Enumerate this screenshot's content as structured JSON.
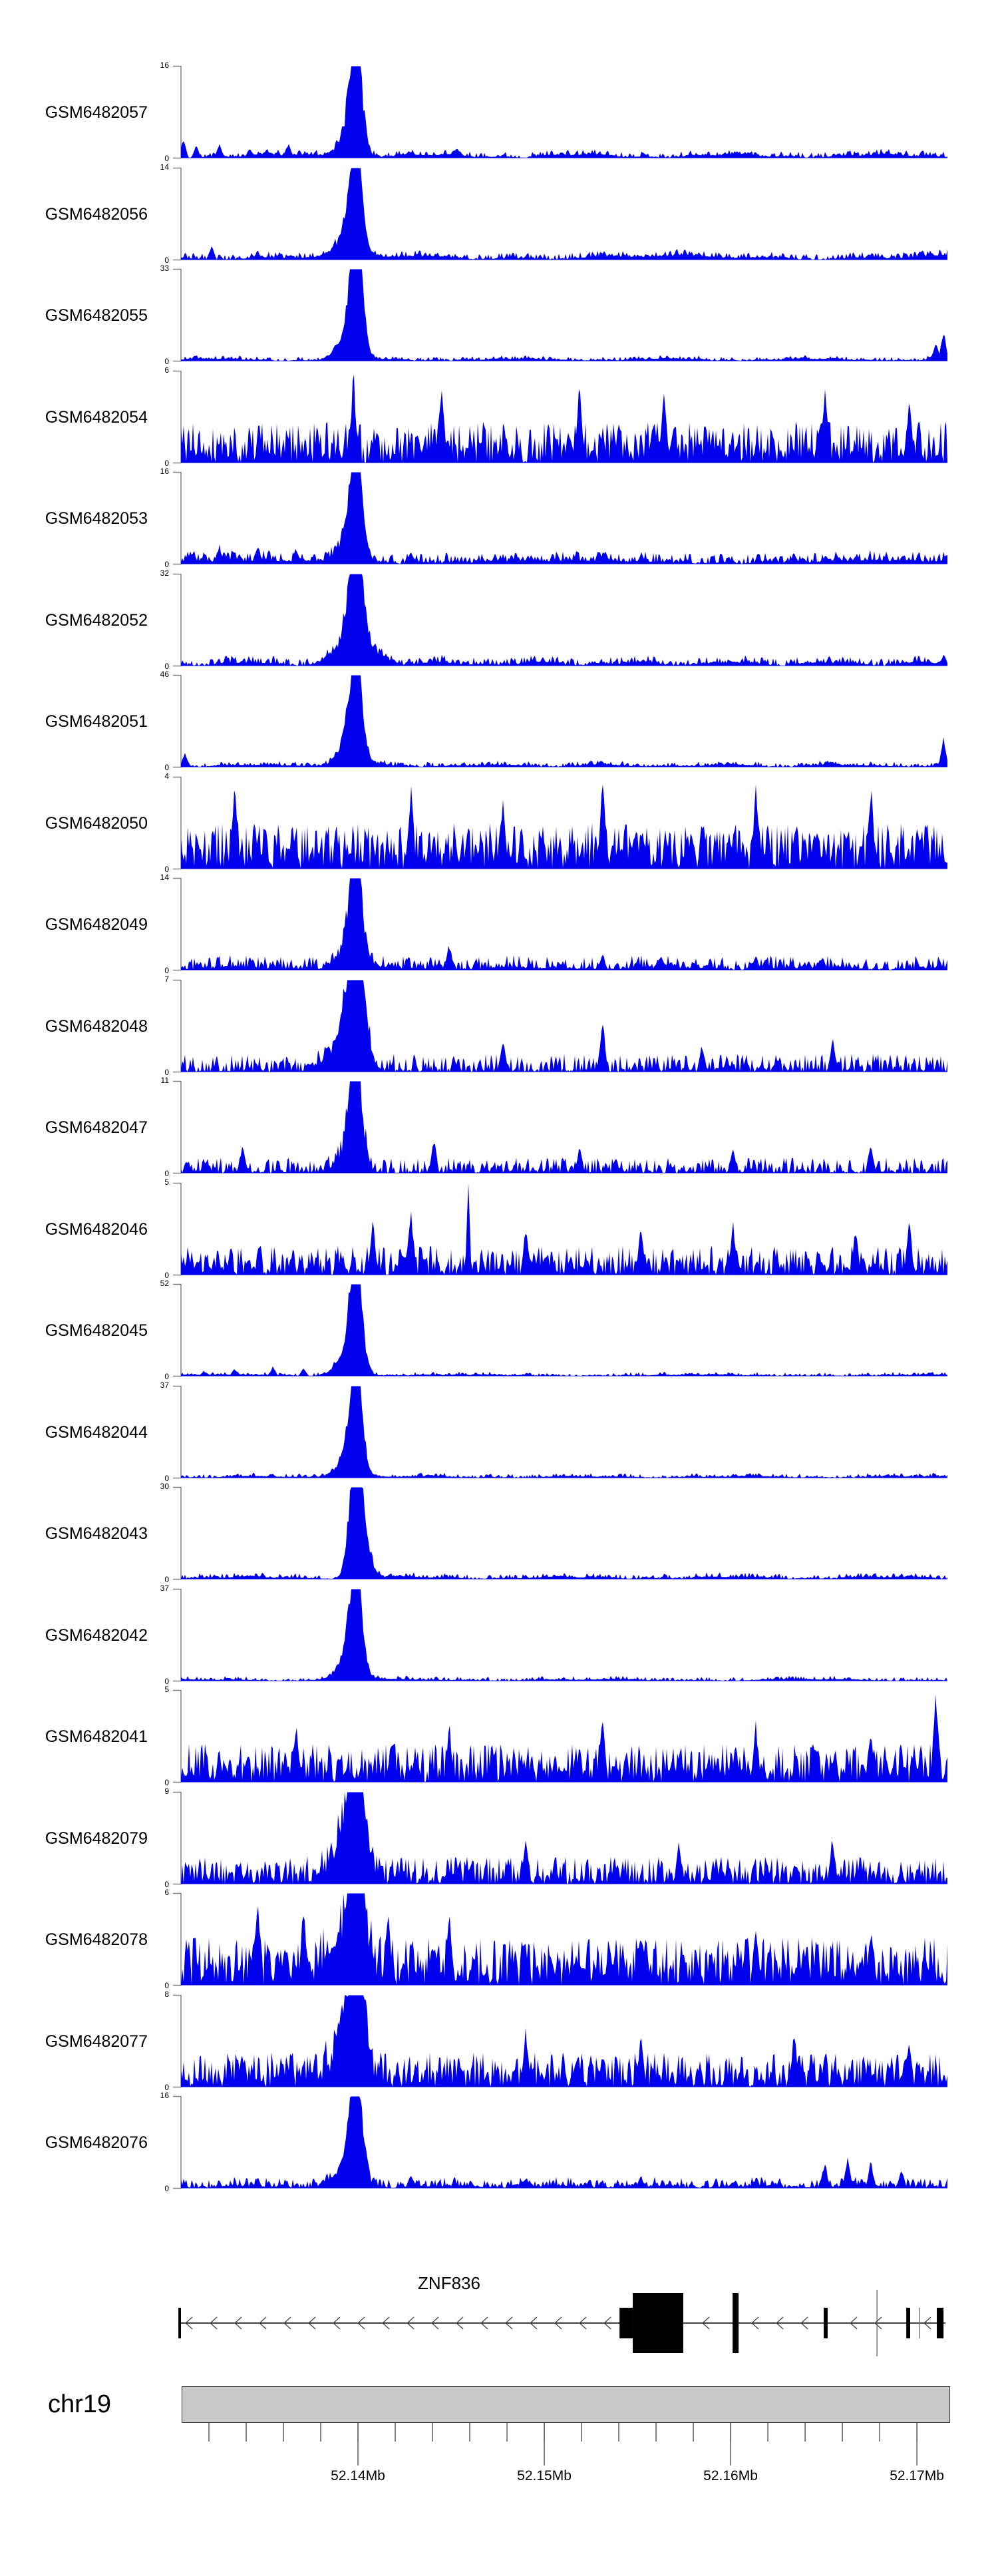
{
  "figure": {
    "background": "#ffffff",
    "signal_color": "#0000ee",
    "axis_line_color": "#808080",
    "tick_color": "#333333",
    "gene_color": "#000000",
    "chrom_bar_fill": "#c9c9c9"
  },
  "chart_data": {
    "type": "area",
    "title": "",
    "description": "Genome browser coverage tracks (21 GEO samples) over the ZNF836 locus on chr19; sharp binding peak near 52.140 Mb in ChIP samples, dense noise in input-like samples.",
    "y_axis_zero_label": "0",
    "region": {
      "chromosome": "chr19",
      "start_mb": 52.1305,
      "end_mb": 52.17164,
      "major_ticks": [
        {
          "mb": 52.14,
          "label": "52.14Mb"
        },
        {
          "mb": 52.15,
          "label": "52.15Mb"
        },
        {
          "mb": 52.16,
          "label": "52.16Mb"
        },
        {
          "mb": 52.17,
          "label": "52.17Mb"
        }
      ],
      "minor_tick_start_mb": 52.132,
      "minor_tick_interval_mb": 0.002,
      "minor_tick_count": 20
    },
    "gene": {
      "name": "ZNF836",
      "strand": "-",
      "start_mb": 52.13036,
      "end_mb": 52.17154,
      "exons": [
        {
          "start_mb": 52.13036,
          "end_mb": 52.1305,
          "height": "short"
        },
        {
          "start_mb": 52.15404,
          "end_mb": 52.15475,
          "height": "short"
        },
        {
          "start_mb": 52.15475,
          "end_mb": 52.15746,
          "height": "tall"
        },
        {
          "start_mb": 52.16011,
          "end_mb": 52.16043,
          "height": "tall"
        },
        {
          "start_mb": 52.165,
          "end_mb": 52.16521,
          "height": "short"
        },
        {
          "start_mb": 52.16943,
          "end_mb": 52.16964,
          "height": "short"
        },
        {
          "start_mb": 52.17107,
          "end_mb": 52.17143,
          "height": "short"
        }
      ],
      "boundary_lines": [
        {
          "mb": 52.16786,
          "height": "tall"
        },
        {
          "mb": 52.17014,
          "height": "short"
        }
      ]
    },
    "peak_position_mb": 52.1399,
    "tracks": [
      {
        "label": "GSM6482057",
        "ymax": 16,
        "seed": 11,
        "base": 0.06,
        "pow": 2.2,
        "wave": 0.03,
        "peaks": [
          {
            "x": 0.228,
            "h": 1.05,
            "w": 0.0035
          },
          {
            "x": 0.2235,
            "h": 0.6,
            "w": 0.007
          },
          {
            "x": 0.2335,
            "h": 0.5,
            "w": 0.006
          },
          {
            "x": 0.219,
            "h": 0.22,
            "w": 0.015
          }
        ],
        "spikes": [
          {
            "x": 0.003,
            "h": 0.2
          },
          {
            "x": 0.02,
            "h": 0.13
          },
          {
            "x": 0.05,
            "h": 0.15
          },
          {
            "x": 0.09,
            "h": 0.1
          },
          {
            "x": 0.14,
            "h": 0.16
          },
          {
            "x": 0.36,
            "h": 0.1,
            "w": 0.012
          }
        ]
      },
      {
        "label": "GSM6482056",
        "ymax": 14,
        "seed": 23,
        "base": 0.065,
        "pow": 2.2,
        "wave": 0.035,
        "peaks": [
          {
            "x": 0.228,
            "h": 1.05,
            "w": 0.0035
          },
          {
            "x": 0.2235,
            "h": 0.6,
            "w": 0.007
          },
          {
            "x": 0.2335,
            "h": 0.5,
            "w": 0.006
          },
          {
            "x": 0.219,
            "h": 0.22,
            "w": 0.015
          }
        ],
        "spikes": [
          {
            "x": 0.04,
            "h": 0.14
          },
          {
            "x": 0.1,
            "h": 0.1
          }
        ]
      },
      {
        "label": "GSM6482055",
        "ymax": 33,
        "seed": 37,
        "base": 0.04,
        "pow": 2.8,
        "wave": 0.02,
        "peaks": [
          {
            "x": 0.228,
            "h": 1.05,
            "w": 0.0035
          },
          {
            "x": 0.2265,
            "h": 0.88,
            "w": 0.0075
          },
          {
            "x": 0.2335,
            "h": 0.5,
            "w": 0.006
          },
          {
            "x": 0.219,
            "h": 0.22,
            "w": 0.015
          }
        ],
        "spikes": [
          {
            "x": 0.995,
            "h": 0.32
          },
          {
            "x": 0.985,
            "h": 0.2
          }
        ]
      },
      {
        "label": "GSM6482054",
        "ymax": 6,
        "seed": 41,
        "base": 0.45,
        "pow": 1.1,
        "wave": 0,
        "peaks": [],
        "spikes": [
          {
            "x": 0.225,
            "h": 0.95
          },
          {
            "x": 0.34,
            "h": 0.9
          },
          {
            "x": 0.52,
            "h": 0.85
          },
          {
            "x": 0.63,
            "h": 0.8
          },
          {
            "x": 0.84,
            "h": 0.85
          },
          {
            "x": 0.95,
            "h": 0.7
          }
        ]
      },
      {
        "label": "GSM6482053",
        "ymax": 16,
        "seed": 53,
        "base": 0.11,
        "pow": 1.8,
        "wave": 0.03,
        "peaks": [
          {
            "x": 0.228,
            "h": 1.05,
            "w": 0.0035
          },
          {
            "x": 0.2235,
            "h": 0.6,
            "w": 0.007
          },
          {
            "x": 0.2335,
            "h": 0.5,
            "w": 0.006
          },
          {
            "x": 0.219,
            "h": 0.22,
            "w": 0.015
          }
        ],
        "spikes": [
          {
            "x": 0.05,
            "h": 0.2
          },
          {
            "x": 0.1,
            "h": 0.22
          },
          {
            "x": 0.15,
            "h": 0.18
          },
          {
            "x": 0.3,
            "h": 0.12
          }
        ]
      },
      {
        "label": "GSM6482052",
        "ymax": 32,
        "seed": 67,
        "base": 0.08,
        "pow": 2.0,
        "wave": 0.03,
        "peaks": [
          {
            "x": 0.228,
            "h": 1.05,
            "w": 0.0035
          },
          {
            "x": 0.2235,
            "h": 0.6,
            "w": 0.007
          },
          {
            "x": 0.2335,
            "h": 0.5,
            "w": 0.006
          },
          {
            "x": 0.228,
            "h": 0.35,
            "w": 0.02
          }
        ],
        "spikes": [
          {
            "x": 0.995,
            "h": 0.12
          }
        ]
      },
      {
        "label": "GSM6482051",
        "ymax": 46,
        "seed": 71,
        "base": 0.05,
        "pow": 2.4,
        "wave": 0.02,
        "peaks": [
          {
            "x": 0.228,
            "h": 1.05,
            "w": 0.0035
          },
          {
            "x": 0.2235,
            "h": 0.6,
            "w": 0.007
          },
          {
            "x": 0.2335,
            "h": 0.5,
            "w": 0.006
          },
          {
            "x": 0.219,
            "h": 0.22,
            "w": 0.015
          }
        ],
        "spikes": [
          {
            "x": 0.005,
            "h": 0.15
          },
          {
            "x": 0.995,
            "h": 0.3
          }
        ]
      },
      {
        "label": "GSM6482050",
        "ymax": 4,
        "seed": 83,
        "base": 0.5,
        "pow": 1.05,
        "wave": 0,
        "peaks": [],
        "spikes": [
          {
            "x": 0.07,
            "h": 0.95
          },
          {
            "x": 0.3,
            "h": 0.9
          },
          {
            "x": 0.42,
            "h": 0.8
          },
          {
            "x": 0.55,
            "h": 0.95
          },
          {
            "x": 0.75,
            "h": 0.85
          },
          {
            "x": 0.9,
            "h": 0.9
          }
        ]
      },
      {
        "label": "GSM6482049",
        "ymax": 14,
        "seed": 97,
        "base": 0.14,
        "pow": 1.7,
        "wave": 0.02,
        "peaks": [
          {
            "x": 0.228,
            "h": 1.05,
            "w": 0.0035
          },
          {
            "x": 0.2235,
            "h": 0.6,
            "w": 0.007
          },
          {
            "x": 0.2335,
            "h": 0.5,
            "w": 0.006
          },
          {
            "x": 0.219,
            "h": 0.22,
            "w": 0.015
          }
        ],
        "spikes": [
          {
            "x": 0.35,
            "h": 0.28
          },
          {
            "x": 0.55,
            "h": 0.18
          },
          {
            "x": 0.75,
            "h": 0.15
          }
        ]
      },
      {
        "label": "GSM6482048",
        "ymax": 7,
        "seed": 101,
        "base": 0.2,
        "pow": 1.5,
        "wave": 0,
        "peaks": [
          {
            "x": 0.228,
            "h": 1.0,
            "w": 0.005
          },
          {
            "x": 0.222,
            "h": 0.6,
            "w": 0.01
          },
          {
            "x": 0.235,
            "h": 0.5,
            "w": 0.008
          },
          {
            "x": 0.215,
            "h": 0.3,
            "w": 0.02
          }
        ],
        "spikes": [
          {
            "x": 0.42,
            "h": 0.35
          },
          {
            "x": 0.55,
            "h": 0.6
          },
          {
            "x": 0.68,
            "h": 0.3
          },
          {
            "x": 0.85,
            "h": 0.35
          }
        ]
      },
      {
        "label": "GSM6482047",
        "ymax": 11,
        "seed": 113,
        "base": 0.17,
        "pow": 1.6,
        "wave": 0,
        "peaks": [
          {
            "x": 0.228,
            "h": 1.05,
            "w": 0.0035
          },
          {
            "x": 0.2235,
            "h": 0.6,
            "w": 0.007
          },
          {
            "x": 0.2335,
            "h": 0.5,
            "w": 0.006
          },
          {
            "x": 0.219,
            "h": 0.22,
            "w": 0.015
          }
        ],
        "spikes": [
          {
            "x": 0.08,
            "h": 0.3
          },
          {
            "x": 0.33,
            "h": 0.38
          },
          {
            "x": 0.52,
            "h": 0.28
          },
          {
            "x": 0.72,
            "h": 0.3
          },
          {
            "x": 0.9,
            "h": 0.33
          }
        ]
      },
      {
        "label": "GSM6482046",
        "ymax": 5,
        "seed": 127,
        "base": 0.32,
        "pow": 1.3,
        "wave": 0,
        "peaks": [],
        "spikes": [
          {
            "x": 0.25,
            "h": 0.6
          },
          {
            "x": 0.3,
            "h": 0.7
          },
          {
            "x": 0.375,
            "h": 1.0,
            "w": 0.004
          },
          {
            "x": 0.45,
            "h": 0.55
          },
          {
            "x": 0.6,
            "h": 0.5
          },
          {
            "x": 0.72,
            "h": 0.55
          },
          {
            "x": 0.88,
            "h": 0.5
          },
          {
            "x": 0.95,
            "h": 0.6
          }
        ]
      },
      {
        "label": "GSM6482045",
        "ymax": 52,
        "seed": 131,
        "base": 0.035,
        "pow": 3.0,
        "wave": 0.012,
        "peaks": [
          {
            "x": 0.228,
            "h": 1.05,
            "w": 0.0035
          },
          {
            "x": 0.2235,
            "h": 0.6,
            "w": 0.007
          },
          {
            "x": 0.2335,
            "h": 0.5,
            "w": 0.006
          },
          {
            "x": 0.219,
            "h": 0.22,
            "w": 0.015
          }
        ],
        "spikes": [
          {
            "x": 0.03,
            "h": 0.06
          },
          {
            "x": 0.07,
            "h": 0.08
          },
          {
            "x": 0.12,
            "h": 0.1
          },
          {
            "x": 0.16,
            "h": 0.08
          },
          {
            "x": 0.2,
            "h": 0.15
          }
        ]
      },
      {
        "label": "GSM6482044",
        "ymax": 37,
        "seed": 139,
        "base": 0.04,
        "pow": 2.8,
        "wave": 0.015,
        "peaks": [
          {
            "x": 0.228,
            "h": 1.05,
            "w": 0.0035
          },
          {
            "x": 0.2235,
            "h": 0.6,
            "w": 0.007
          },
          {
            "x": 0.2335,
            "h": 0.5,
            "w": 0.006
          },
          {
            "x": 0.219,
            "h": 0.22,
            "w": 0.015
          }
        ],
        "spikes": []
      },
      {
        "label": "GSM6482043",
        "ymax": 30,
        "seed": 149,
        "base": 0.05,
        "pow": 2.6,
        "wave": 0.02,
        "peaks": [
          {
            "x": 0.228,
            "h": 1.05,
            "w": 0.0035
          },
          {
            "x": 0.2235,
            "h": 0.6,
            "w": 0.007
          },
          {
            "x": 0.2335,
            "h": 0.5,
            "w": 0.006
          },
          {
            "x": 0.236,
            "h": 0.5,
            "w": 0.01
          }
        ],
        "spikes": []
      },
      {
        "label": "GSM6482042",
        "ymax": 37,
        "seed": 151,
        "base": 0.04,
        "pow": 2.8,
        "wave": 0.015,
        "peaks": [
          {
            "x": 0.228,
            "h": 1.05,
            "w": 0.0035
          },
          {
            "x": 0.2235,
            "h": 0.6,
            "w": 0.007
          },
          {
            "x": 0.2335,
            "h": 0.5,
            "w": 0.006
          },
          {
            "x": 0.219,
            "h": 0.22,
            "w": 0.015
          }
        ],
        "spikes": []
      },
      {
        "label": "GSM6482041",
        "ymax": 5,
        "seed": 163,
        "base": 0.42,
        "pow": 1.1,
        "wave": 0,
        "peaks": [],
        "spikes": [
          {
            "x": 0.15,
            "h": 0.65
          },
          {
            "x": 0.35,
            "h": 0.6
          },
          {
            "x": 0.55,
            "h": 0.65
          },
          {
            "x": 0.75,
            "h": 0.6
          },
          {
            "x": 0.9,
            "h": 0.55
          },
          {
            "x": 0.985,
            "h": 1.0
          }
        ]
      },
      {
        "label": "GSM6482079",
        "ymax": 9,
        "seed": 173,
        "base": 0.3,
        "pow": 1.4,
        "wave": 0,
        "peaks": [
          {
            "x": 0.228,
            "h": 1.0,
            "w": 0.005
          },
          {
            "x": 0.222,
            "h": 0.6,
            "w": 0.01
          },
          {
            "x": 0.235,
            "h": 0.5,
            "w": 0.008
          },
          {
            "x": 0.215,
            "h": 0.3,
            "w": 0.02
          }
        ],
        "spikes": [
          {
            "x": 0.45,
            "h": 0.5
          },
          {
            "x": 0.65,
            "h": 0.45
          },
          {
            "x": 0.85,
            "h": 0.5
          }
        ]
      },
      {
        "label": "GSM6482078",
        "ymax": 6,
        "seed": 181,
        "base": 0.52,
        "pow": 0.95,
        "wave": 0,
        "peaks": [
          {
            "x": 0.228,
            "h": 1.0,
            "w": 0.005
          },
          {
            "x": 0.222,
            "h": 0.6,
            "w": 0.01
          },
          {
            "x": 0.235,
            "h": 0.5,
            "w": 0.008
          },
          {
            "x": 0.215,
            "h": 0.3,
            "w": 0.02
          }
        ],
        "spikes": [
          {
            "x": 0.1,
            "h": 0.85
          },
          {
            "x": 0.16,
            "h": 0.9
          },
          {
            "x": 0.27,
            "h": 0.8
          },
          {
            "x": 0.35,
            "h": 0.75
          },
          {
            "x": 0.6,
            "h": 0.6
          },
          {
            "x": 0.75,
            "h": 0.65
          },
          {
            "x": 0.9,
            "h": 0.6
          }
        ]
      },
      {
        "label": "GSM6482077",
        "ymax": 8,
        "seed": 191,
        "base": 0.38,
        "pow": 1.2,
        "wave": 0,
        "peaks": [
          {
            "x": 0.228,
            "h": 1.0,
            "w": 0.005
          },
          {
            "x": 0.222,
            "h": 0.6,
            "w": 0.01
          },
          {
            "x": 0.235,
            "h": 0.5,
            "w": 0.008
          },
          {
            "x": 0.215,
            "h": 0.3,
            "w": 0.02
          }
        ],
        "spikes": [
          {
            "x": 0.45,
            "h": 0.6
          },
          {
            "x": 0.6,
            "h": 0.55
          },
          {
            "x": 0.8,
            "h": 0.6
          },
          {
            "x": 0.95,
            "h": 0.5
          }
        ]
      },
      {
        "label": "GSM6482076",
        "ymax": 16,
        "seed": 199,
        "base": 0.1,
        "pow": 1.9,
        "wave": 0.02,
        "peaks": [
          {
            "x": 0.228,
            "h": 1.05,
            "w": 0.0035
          },
          {
            "x": 0.2235,
            "h": 0.6,
            "w": 0.007
          },
          {
            "x": 0.2335,
            "h": 0.5,
            "w": 0.006
          },
          {
            "x": 0.219,
            "h": 0.22,
            "w": 0.015
          }
        ],
        "spikes": [
          {
            "x": 0.1,
            "h": 0.12
          },
          {
            "x": 0.3,
            "h": 0.15
          },
          {
            "x": 0.45,
            "h": 0.12
          },
          {
            "x": 0.6,
            "h": 0.14
          },
          {
            "x": 0.84,
            "h": 0.28
          },
          {
            "x": 0.87,
            "h": 0.33
          },
          {
            "x": 0.9,
            "h": 0.28
          },
          {
            "x": 0.94,
            "h": 0.2
          }
        ]
      }
    ]
  }
}
